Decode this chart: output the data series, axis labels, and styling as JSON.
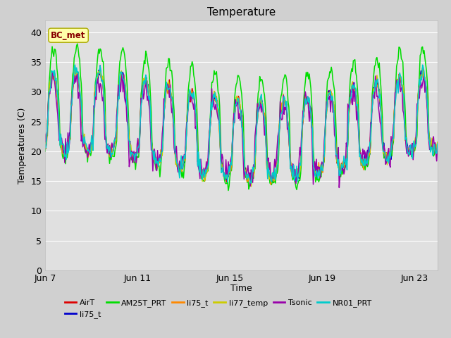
{
  "title": "Temperature",
  "ylabel": "Temperatures (C)",
  "xlabel": "Time",
  "annotation": "BC_met",
  "ylim": [
    0,
    42
  ],
  "yticks": [
    0,
    5,
    10,
    15,
    20,
    25,
    30,
    35,
    40
  ],
  "xtick_positions": [
    0,
    4,
    8,
    12,
    16
  ],
  "xtick_labels": [
    "Jun 7",
    "Jun 11",
    "Jun 15",
    "Jun 19",
    "Jun 23"
  ],
  "fig_bg_color": "#d0d0d0",
  "plot_bg_color": "#e0e0e0",
  "grid_color": "#ffffff",
  "series": [
    {
      "name": "AirT",
      "color": "#dd0000"
    },
    {
      "name": "li75_t",
      "color": "#0000cc"
    },
    {
      "name": "AM25T_PRT",
      "color": "#00dd00"
    },
    {
      "name": "li75_t",
      "color": "#ff8800"
    },
    {
      "name": "li77_temp",
      "color": "#cccc00"
    },
    {
      "name": "Tsonic",
      "color": "#9900aa"
    },
    {
      "name": "NR01_PRT",
      "color": "#00cccc"
    }
  ],
  "annotation_facecolor": "#ffffaa",
  "annotation_edgecolor": "#aaaa00",
  "annotation_textcolor": "#880000"
}
